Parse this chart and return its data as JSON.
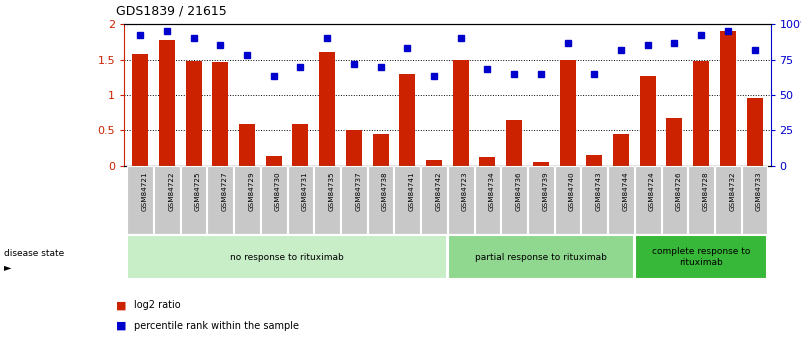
{
  "title": "GDS1839 / 21615",
  "samples": [
    "GSM84721",
    "GSM84722",
    "GSM84725",
    "GSM84727",
    "GSM84729",
    "GSM84730",
    "GSM84731",
    "GSM84735",
    "GSM84737",
    "GSM84738",
    "GSM84741",
    "GSM84742",
    "GSM84723",
    "GSM84734",
    "GSM84736",
    "GSM84739",
    "GSM84740",
    "GSM84743",
    "GSM84744",
    "GSM84724",
    "GSM84726",
    "GSM84728",
    "GSM84732",
    "GSM84733"
  ],
  "log2_ratio": [
    1.58,
    1.78,
    1.48,
    1.46,
    0.59,
    0.14,
    0.59,
    1.6,
    0.51,
    0.44,
    1.3,
    0.08,
    1.5,
    0.12,
    0.64,
    0.05,
    1.5,
    0.15,
    0.44,
    1.27,
    0.68,
    1.48,
    1.9,
    0.95
  ],
  "percentile": [
    92,
    95,
    90,
    85,
    78,
    63,
    70,
    90,
    72,
    70,
    83,
    63,
    90,
    68,
    65,
    65,
    87,
    65,
    82,
    85,
    87,
    92,
    95,
    82
  ],
  "groups": [
    {
      "label": "no response to rituximab",
      "start": 0,
      "end": 12,
      "color": "#c8eec8"
    },
    {
      "label": "partial response to rituximab",
      "start": 12,
      "end": 19,
      "color": "#90d890"
    },
    {
      "label": "complete response to\nrituximab",
      "start": 19,
      "end": 24,
      "color": "#38b838"
    }
  ],
  "bar_color": "#cc2200",
  "dot_color": "#0000cc",
  "yticks_left": [
    0,
    0.5,
    1.0,
    1.5,
    2.0
  ],
  "yticklabels_left": [
    "0",
    "0.5",
    "1",
    "1.5",
    "2"
  ],
  "yticks_right": [
    0,
    25,
    50,
    75,
    100
  ],
  "yticklabels_right": [
    "0",
    "25",
    "50",
    "75",
    "100%"
  ],
  "legend_items": [
    {
      "color": "#cc2200",
      "label": "log2 ratio"
    },
    {
      "color": "#0000cc",
      "label": "percentile rank within the sample"
    }
  ],
  "disease_state_label": "disease state"
}
